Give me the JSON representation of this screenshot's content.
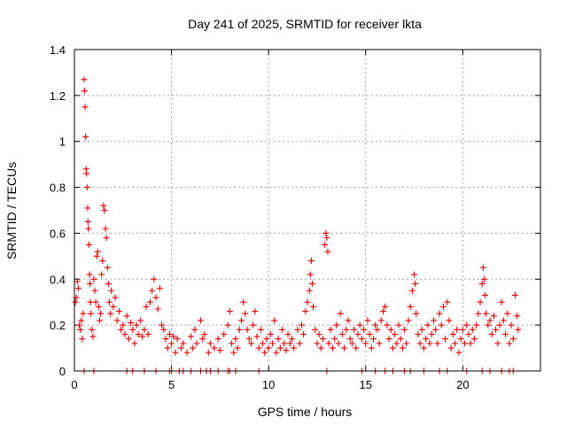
{
  "chart_data": {
    "type": "scatter",
    "title": "Day 241 of 2025, SRMTID for receiver lkta",
    "xlabel": "GPS time / hours",
    "ylabel": "SRMTID / TECUs",
    "xlim": [
      0,
      24
    ],
    "ylim": [
      0,
      1.4
    ],
    "xticks": [
      0,
      5,
      10,
      15,
      20
    ],
    "xtick_labels": [
      "0",
      "5",
      "10",
      "15",
      "20"
    ],
    "yticks": [
      0,
      0.2,
      0.4,
      0.6,
      0.8,
      1.0,
      1.2,
      1.4
    ],
    "ytick_labels": [
      "0",
      "0.2",
      "0.4",
      "0.6",
      "0.8",
      "1",
      "1.2",
      "1.4"
    ],
    "grid": true,
    "marker": "plus",
    "color": "#e00000",
    "series": [
      {
        "name": "SRMTID",
        "points": [
          [
            0.05,
            0.3
          ],
          [
            0.1,
            0.32
          ],
          [
            0.15,
            0.39
          ],
          [
            0.2,
            0.36
          ],
          [
            0.25,
            0.2
          ],
          [
            0.3,
            0.18
          ],
          [
            0.35,
            0.22
          ],
          [
            0.4,
            0.14
          ],
          [
            0.45,
            0.25
          ],
          [
            0.5,
            1.27
          ],
          [
            0.52,
            1.22
          ],
          [
            0.55,
            1.15
          ],
          [
            0.58,
            1.02
          ],
          [
            0.6,
            0.88
          ],
          [
            0.62,
            0.86
          ],
          [
            0.65,
            0.8
          ],
          [
            0.68,
            0.71
          ],
          [
            0.7,
            0.65
          ],
          [
            0.72,
            0.62
          ],
          [
            0.75,
            0.55
          ],
          [
            0.78,
            0.42
          ],
          [
            0.8,
            0.38
          ],
          [
            0.82,
            0.3
          ],
          [
            0.85,
            0.25
          ],
          [
            0.9,
            0.18
          ],
          [
            0.95,
            0.15
          ],
          [
            1.0,
            0.4
          ],
          [
            1.05,
            0.35
          ],
          [
            1.1,
            0.3
          ],
          [
            1.15,
            0.5
          ],
          [
            1.2,
            0.52
          ],
          [
            1.25,
            0.28
          ],
          [
            1.3,
            0.22
          ],
          [
            1.35,
            0.25
          ],
          [
            1.4,
            0.42
          ],
          [
            1.45,
            0.48
          ],
          [
            1.5,
            0.72
          ],
          [
            1.55,
            0.7
          ],
          [
            1.6,
            0.62
          ],
          [
            1.65,
            0.58
          ],
          [
            1.7,
            0.45
          ],
          [
            1.75,
            0.38
          ],
          [
            1.8,
            0.3
          ],
          [
            1.85,
            0.25
          ],
          [
            1.9,
            0.35
          ],
          [
            2.0,
            0.28
          ],
          [
            2.1,
            0.32
          ],
          [
            2.2,
            0.22
          ],
          [
            2.3,
            0.26
          ],
          [
            2.4,
            0.18
          ],
          [
            2.5,
            0.2
          ],
          [
            2.6,
            0.16
          ],
          [
            2.7,
            0.24
          ],
          [
            2.8,
            0.14
          ],
          [
            2.9,
            0.21
          ],
          [
            3.0,
            0.18
          ],
          [
            3.1,
            0.12
          ],
          [
            3.2,
            0.2
          ],
          [
            3.3,
            0.16
          ],
          [
            3.4,
            0.22
          ],
          [
            3.5,
            0.15
          ],
          [
            3.6,
            0.18
          ],
          [
            3.7,
            0.28
          ],
          [
            3.8,
            0.16
          ],
          [
            3.9,
            0.3
          ],
          [
            4.0,
            0.35
          ],
          [
            4.1,
            0.4
          ],
          [
            4.2,
            0.32
          ],
          [
            4.3,
            0.27
          ],
          [
            4.4,
            0.36
          ],
          [
            4.5,
            0.2
          ],
          [
            4.6,
            0.18
          ],
          [
            4.7,
            0.14
          ],
          [
            4.8,
            0.1
          ],
          [
            4.9,
            0.16
          ],
          [
            5.0,
            0.12
          ],
          [
            5.1,
            0.15
          ],
          [
            5.2,
            0.08
          ],
          [
            5.3,
            0.14
          ],
          [
            5.5,
            0.1
          ],
          [
            5.6,
            0.12
          ],
          [
            5.8,
            0.08
          ],
          [
            6.0,
            0.15
          ],
          [
            6.1,
            0.1
          ],
          [
            6.2,
            0.18
          ],
          [
            6.3,
            0.12
          ],
          [
            6.5,
            0.22
          ],
          [
            6.6,
            0.14
          ],
          [
            6.7,
            0.16
          ],
          [
            6.9,
            0.08
          ],
          [
            7.0,
            0.12
          ],
          [
            7.2,
            0.1
          ],
          [
            7.4,
            0.14
          ],
          [
            7.5,
            0.09
          ],
          [
            7.7,
            0.16
          ],
          [
            7.9,
            0.2
          ],
          [
            8.0,
            0.26
          ],
          [
            8.1,
            0.12
          ],
          [
            8.2,
            0.08
          ],
          [
            8.3,
            0.14
          ],
          [
            8.4,
            0.1
          ],
          [
            8.5,
            0.18
          ],
          [
            8.6,
            0.22
          ],
          [
            8.7,
            0.3
          ],
          [
            8.8,
            0.25
          ],
          [
            8.9,
            0.18
          ],
          [
            9.0,
            0.14
          ],
          [
            9.1,
            0.12
          ],
          [
            9.2,
            0.2
          ],
          [
            9.3,
            0.26
          ],
          [
            9.4,
            0.15
          ],
          [
            9.5,
            0.1
          ],
          [
            9.6,
            0.18
          ],
          [
            9.7,
            0.12
          ],
          [
            9.8,
            0.08
          ],
          [
            9.9,
            0.14
          ],
          [
            10.0,
            0.1
          ],
          [
            10.1,
            0.16
          ],
          [
            10.2,
            0.12
          ],
          [
            10.3,
            0.22
          ],
          [
            10.4,
            0.08
          ],
          [
            10.5,
            0.14
          ],
          [
            10.6,
            0.1
          ],
          [
            10.7,
            0.18
          ],
          [
            10.8,
            0.12
          ],
          [
            10.9,
            0.09
          ],
          [
            11.0,
            0.16
          ],
          [
            11.1,
            0.12
          ],
          [
            11.2,
            0.14
          ],
          [
            11.3,
            0.1
          ],
          [
            11.5,
            0.18
          ],
          [
            11.6,
            0.12
          ],
          [
            11.7,
            0.2
          ],
          [
            11.8,
            0.16
          ],
          [
            11.9,
            0.26
          ],
          [
            12.0,
            0.3
          ],
          [
            12.1,
            0.35
          ],
          [
            12.15,
            0.42
          ],
          [
            12.2,
            0.48
          ],
          [
            12.25,
            0.38
          ],
          [
            12.3,
            0.28
          ],
          [
            12.4,
            0.18
          ],
          [
            12.5,
            0.12
          ],
          [
            12.6,
            0.16
          ],
          [
            12.7,
            0.1
          ],
          [
            12.8,
            0.14
          ],
          [
            12.9,
            0.55
          ],
          [
            12.95,
            0.6
          ],
          [
            13.0,
            0.58
          ],
          [
            13.05,
            0.52
          ],
          [
            13.1,
            0.12
          ],
          [
            13.2,
            0.18
          ],
          [
            13.3,
            0.1
          ],
          [
            13.4,
            0.14
          ],
          [
            13.5,
            0.2
          ],
          [
            13.6,
            0.12
          ],
          [
            13.7,
            0.25
          ],
          [
            13.8,
            0.16
          ],
          [
            13.9,
            0.1
          ],
          [
            14.0,
            0.18
          ],
          [
            14.1,
            0.22
          ],
          [
            14.2,
            0.14
          ],
          [
            14.3,
            0.12
          ],
          [
            14.4,
            0.18
          ],
          [
            14.5,
            0.1
          ],
          [
            14.6,
            0.16
          ],
          [
            14.7,
            0.2
          ],
          [
            14.8,
            0.14
          ],
          [
            14.9,
            0.18
          ],
          [
            15.0,
            0.12
          ],
          [
            15.1,
            0.22
          ],
          [
            15.2,
            0.16
          ],
          [
            15.3,
            0.1
          ],
          [
            15.4,
            0.14
          ],
          [
            15.5,
            0.2
          ],
          [
            15.6,
            0.18
          ],
          [
            15.7,
            0.12
          ],
          [
            15.8,
            0.22
          ],
          [
            15.9,
            0.26
          ],
          [
            16.0,
            0.28
          ],
          [
            16.1,
            0.2
          ],
          [
            16.2,
            0.14
          ],
          [
            16.3,
            0.18
          ],
          [
            16.4,
            0.1
          ],
          [
            16.5,
            0.16
          ],
          [
            16.6,
            0.12
          ],
          [
            16.7,
            0.2
          ],
          [
            16.8,
            0.14
          ],
          [
            16.9,
            0.1
          ],
          [
            17.0,
            0.18
          ],
          [
            17.1,
            0.12
          ],
          [
            17.2,
            0.22
          ],
          [
            17.3,
            0.28
          ],
          [
            17.4,
            0.35
          ],
          [
            17.5,
            0.42
          ],
          [
            17.55,
            0.38
          ],
          [
            17.6,
            0.25
          ],
          [
            17.7,
            0.16
          ],
          [
            17.8,
            0.12
          ],
          [
            17.9,
            0.18
          ],
          [
            18.0,
            0.1
          ],
          [
            18.1,
            0.14
          ],
          [
            18.2,
            0.2
          ],
          [
            18.3,
            0.12
          ],
          [
            18.4,
            0.16
          ],
          [
            18.5,
            0.22
          ],
          [
            18.6,
            0.18
          ],
          [
            18.7,
            0.12
          ],
          [
            18.8,
            0.25
          ],
          [
            18.9,
            0.2
          ],
          [
            19.0,
            0.28
          ],
          [
            19.1,
            0.14
          ],
          [
            19.2,
            0.3
          ],
          [
            19.3,
            0.22
          ],
          [
            19.4,
            0.1
          ],
          [
            19.5,
            0.16
          ],
          [
            19.6,
            0.12
          ],
          [
            19.7,
            0.18
          ],
          [
            19.8,
            0.08
          ],
          [
            19.9,
            0.14
          ],
          [
            20.0,
            0.18
          ],
          [
            20.1,
            0.12
          ],
          [
            20.2,
            0.2
          ],
          [
            20.3,
            0.16
          ],
          [
            20.4,
            0.12
          ],
          [
            20.5,
            0.18
          ],
          [
            20.6,
            0.14
          ],
          [
            20.7,
            0.2
          ],
          [
            20.8,
            0.25
          ],
          [
            20.9,
            0.3
          ],
          [
            21.0,
            0.38
          ],
          [
            21.05,
            0.45
          ],
          [
            21.1,
            0.4
          ],
          [
            21.15,
            0.33
          ],
          [
            21.2,
            0.25
          ],
          [
            21.3,
            0.2
          ],
          [
            21.4,
            0.22
          ],
          [
            21.5,
            0.16
          ],
          [
            21.6,
            0.24
          ],
          [
            21.7,
            0.18
          ],
          [
            21.8,
            0.12
          ],
          [
            21.9,
            0.2
          ],
          [
            22.0,
            0.3
          ],
          [
            22.1,
            0.22
          ],
          [
            22.2,
            0.16
          ],
          [
            22.3,
            0.25
          ],
          [
            22.4,
            0.12
          ],
          [
            22.5,
            0.2
          ],
          [
            22.6,
            0.14
          ],
          [
            22.7,
            0.33
          ],
          [
            22.8,
            0.24
          ],
          [
            22.85,
            0.18
          ]
        ],
        "zero_points": [
          0.5,
          1.0,
          2.7,
          3.0,
          3.6,
          4.2,
          4.9,
          5.0,
          5.4,
          5.6,
          6.0,
          6.5,
          6.8,
          7.0,
          7.4,
          7.9,
          8.0,
          8.3,
          9.5,
          13.0,
          14.8,
          15.5,
          16.0,
          16.4,
          17.0,
          17.3,
          18.0,
          18.8,
          19.2,
          20.2,
          21.0,
          21.4,
          22.0,
          22.4,
          22.6
        ]
      }
    ]
  }
}
